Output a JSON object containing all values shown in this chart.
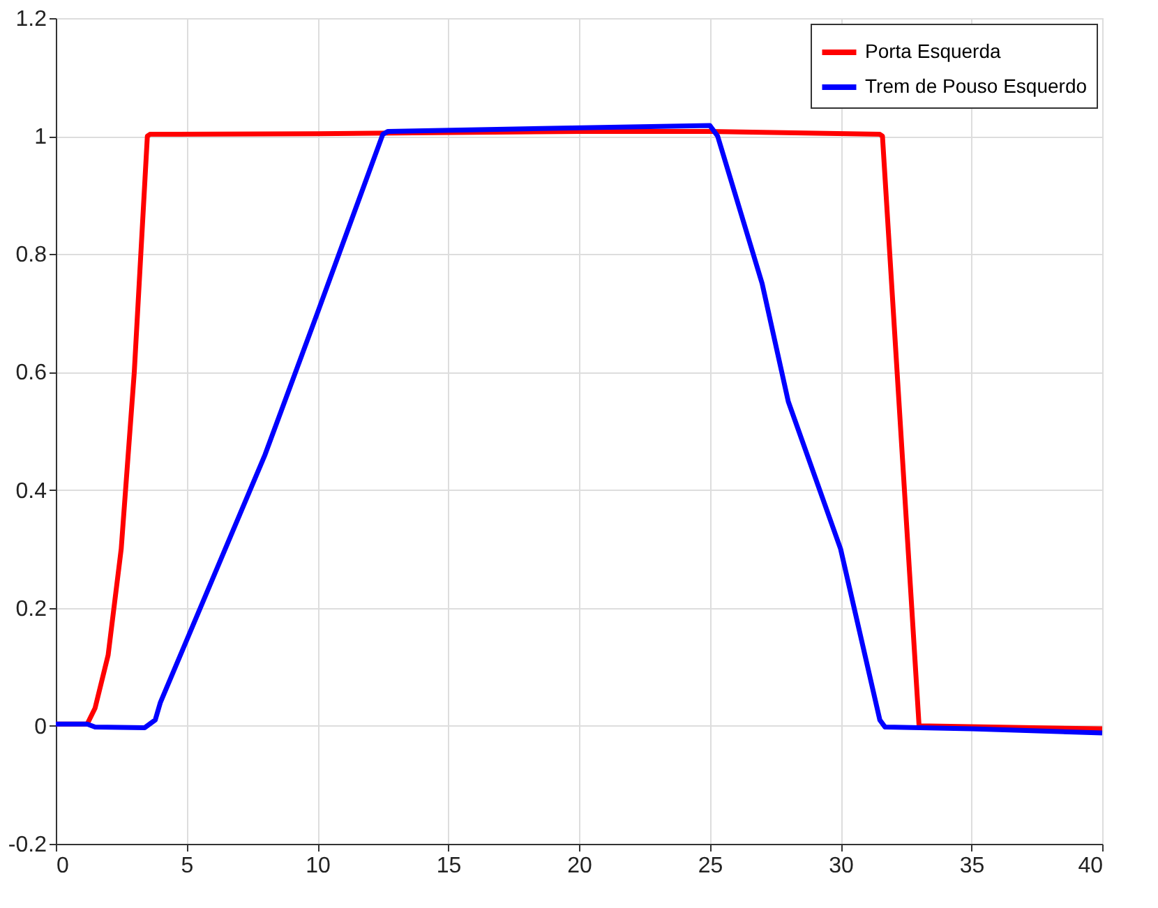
{
  "chart_data": {
    "type": "line",
    "xlim": [
      0,
      40
    ],
    "ylim": [
      -0.2,
      1.2
    ],
    "xticks": [
      0,
      5,
      10,
      15,
      20,
      25,
      30,
      35,
      40
    ],
    "yticks": [
      -0.2,
      0,
      0.2,
      0.4,
      0.6,
      0.8,
      1,
      1.2
    ],
    "grid": true,
    "legend": "top right",
    "marker": "none",
    "line_style": "solid",
    "series": [
      {
        "name": "Porta Esquerda",
        "color": "#ff0000",
        "x": [
          0,
          1.2,
          1.5,
          2,
          2.5,
          3,
          3.5,
          3.6,
          10,
          20,
          25,
          31.5,
          31.6,
          33,
          40
        ],
        "values": [
          0.003,
          0.003,
          0.03,
          0.12,
          0.3,
          0.6,
          1.0,
          1.003,
          1.004,
          1.008,
          1.008,
          1.003,
          1.0,
          0.0,
          -0.005
        ]
      },
      {
        "name": "Trem de Pouso Esquerdo",
        "color": "#0000ff",
        "x": [
          0,
          1.2,
          1.5,
          3.4,
          3.8,
          4,
          8,
          10,
          12.5,
          12.7,
          25,
          25.3,
          27,
          28,
          30,
          31.5,
          31.7,
          35,
          40
        ],
        "values": [
          0.003,
          0.003,
          -0.002,
          -0.003,
          0.01,
          0.04,
          0.46,
          0.7,
          1.003,
          1.008,
          1.018,
          1.0,
          0.75,
          0.55,
          0.3,
          0.01,
          -0.002,
          -0.005,
          -0.012
        ]
      }
    ]
  }
}
